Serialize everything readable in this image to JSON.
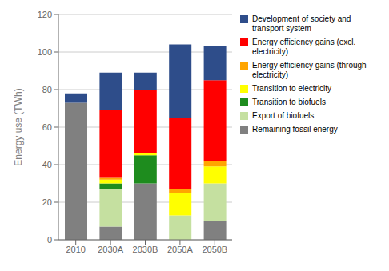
{
  "chart_data": {
    "type": "bar",
    "stacked": true,
    "categories": [
      "2010",
      "2030A",
      "2030B",
      "2050A",
      "2050B"
    ],
    "series": [
      {
        "name": "Remaining fossil energy",
        "color": "#808080",
        "values": [
          73,
          7,
          30,
          0,
          10
        ]
      },
      {
        "name": "Export of biofuels",
        "color": "#c5e0a0",
        "values": [
          0,
          20,
          0,
          13,
          20
        ]
      },
      {
        "name": "Transition to biofuels",
        "color": "#1e8c1e",
        "values": [
          0,
          3,
          15,
          0,
          0
        ]
      },
      {
        "name": "Transition to electricity",
        "color": "#ffff00",
        "values": [
          0,
          2,
          1,
          12,
          9
        ]
      },
      {
        "name": "Energy efficiency gains (through\nelectricity)",
        "color": "#ffa500",
        "values": [
          0,
          1,
          0,
          2,
          3
        ]
      },
      {
        "name": "Energy efficiency gains (excl.\nelectricity)",
        "color": "#ff0000",
        "values": [
          0,
          36,
          34,
          38,
          43
        ]
      },
      {
        "name": "Development of society and\ntransport system",
        "color": "#2e4d8a",
        "values": [
          5,
          20,
          9,
          39,
          18
        ]
      }
    ],
    "ylabel": "Energy use (TWh)",
    "ylim": [
      0,
      120
    ],
    "yticks": [
      0,
      20,
      40,
      60,
      80,
      100,
      120
    ],
    "grid": true,
    "legend": "right"
  }
}
